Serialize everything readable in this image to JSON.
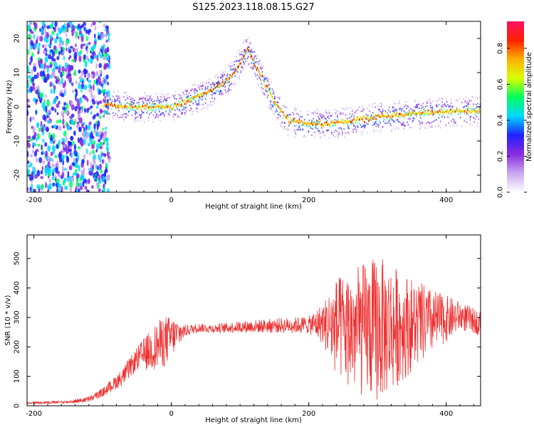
{
  "title": "S125.2023.118.08.15.G27",
  "chart_data": [
    {
      "type": "heatmap",
      "xlabel": "Height of straight line (km)",
      "ylabel": "Frequency (Hz)",
      "xlim": [
        -210,
        450
      ],
      "ylim": [
        -25,
        25
      ],
      "x_ticks": [
        -200,
        0,
        200,
        400
      ],
      "y_ticks": [
        -20,
        -10,
        0,
        10,
        20
      ],
      "grid": false,
      "colorbar": {
        "label": "Normalized spectral amplitude",
        "range": [
          0,
          0.95
        ],
        "ticks": [
          0.0,
          0.2,
          0.4,
          0.6,
          0.8
        ],
        "colormap": [
          "#ffffff",
          "#c9a8f0",
          "#8a2be2",
          "#2020ff",
          "#00d8ff",
          "#00ff60",
          "#d8ff00",
          "#ffb000",
          "#ff2000",
          "#ff1060"
        ]
      },
      "ridge": {
        "x": [
          -90,
          -50,
          0,
          50,
          80,
          100,
          110,
          125,
          150,
          170,
          200,
          250,
          300,
          350,
          400,
          450
        ],
        "y": [
          0.5,
          0,
          0,
          4,
          7.5,
          13,
          17,
          11,
          1,
          -4,
          -5,
          -4.5,
          -3,
          -2,
          -1.5,
          -1
        ]
      }
    },
    {
      "type": "line",
      "xlabel": "Height of straight line (km)",
      "ylabel": "SNR (10 * v/v)",
      "xlim": [
        -210,
        450
      ],
      "ylim": [
        0,
        580
      ],
      "x_ticks": [
        -200,
        0,
        200,
        400
      ],
      "y_ticks": [
        0,
        100,
        200,
        300,
        400,
        500
      ],
      "grid": false,
      "series_color": "#ef3030",
      "envelope": {
        "x": [
          -210,
          -150,
          -120,
          -100,
          -70,
          -50,
          -30,
          -10,
          10,
          20,
          40,
          60,
          100,
          150,
          200,
          220,
          240,
          270,
          300,
          320,
          350,
          380,
          400,
          420,
          450
        ],
        "mean": [
          10,
          13,
          22,
          45,
          100,
          160,
          190,
          220,
          245,
          255,
          265,
          262,
          268,
          272,
          275,
          280,
          265,
          255,
          260,
          265,
          275,
          285,
          295,
          305,
          280
        ],
        "spread": [
          4,
          5,
          10,
          15,
          30,
          40,
          70,
          90,
          50,
          20,
          15,
          15,
          20,
          25,
          30,
          70,
          170,
          220,
          250,
          220,
          160,
          110,
          80,
          50,
          40
        ]
      }
    }
  ]
}
